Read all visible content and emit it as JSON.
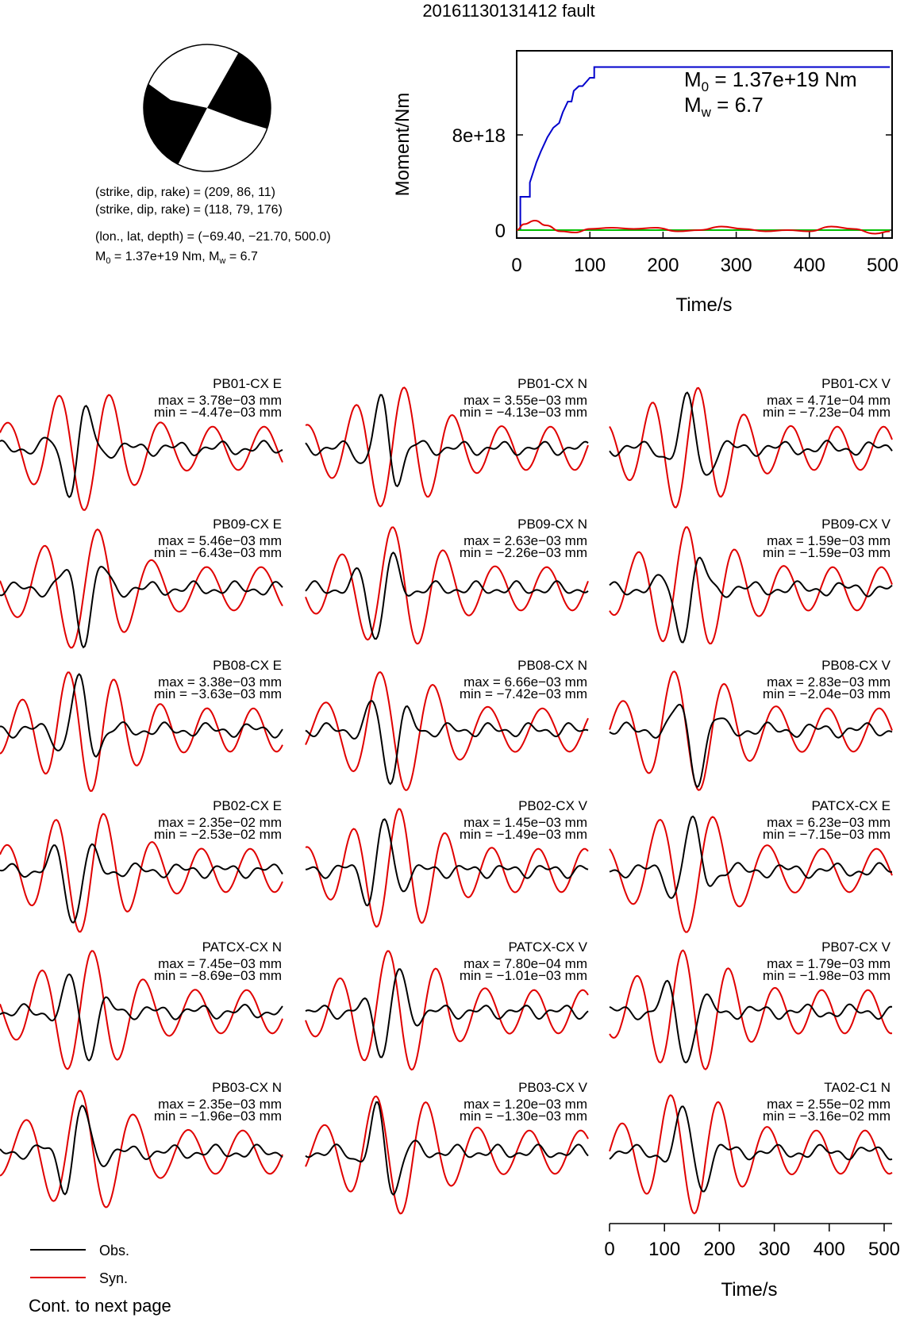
{
  "title": "20161130131412 fault",
  "beachball": {
    "lines": [
      "(strike, dip, rake) = (209, 86, 11)",
      "(strike, dip, rake) = (118, 79, 176)",
      "(lon., lat, depth) = (−69.40, −21.70, 500.0)"
    ],
    "moment_line": {
      "m0_prefix": "M",
      "m0_sub": "0",
      "m0_value": " = 1.37e+19 Nm, M",
      "mw_sub": "w",
      "mw_value": " = 6.7"
    }
  },
  "colors": {
    "obs": "#000000",
    "syn": "#e00000",
    "moment": "#0000cc",
    "stf_green": "#00c000"
  },
  "legend": {
    "obs": "Obs.",
    "syn": "Syn.",
    "cont": "Cont. to next page"
  },
  "chart_data": [
    {
      "type": "line",
      "name": "moment-rate",
      "xlabel": "Time/s",
      "ylabel": "Moment/Nm",
      "xlim": [
        0,
        510
      ],
      "ylim": [
        -1e+17,
        1.45e+19
      ],
      "xticks": [
        "0",
        "100",
        "200",
        "300",
        "400",
        "500"
      ],
      "yticks": [
        "0",
        "8e+18"
      ],
      "annotation": {
        "m0_prefix": "M",
        "m0_sub": "0",
        "m0_value": " = 1.37e+19 Nm",
        "mw_prefix": "M",
        "mw_sub": "w",
        "mw_value": " = 6.7"
      },
      "series": [
        {
          "color": "#0000cc",
          "x": [
            0,
            5,
            5,
            18,
            18,
            27,
            33,
            42,
            50,
            58,
            63,
            70,
            75,
            78,
            85,
            90,
            100,
            106,
            106,
            510
          ],
          "y": [
            0,
            0,
            2.8e+18,
            2.8e+18,
            4e+18,
            5.7e+18,
            6.6e+18,
            7.8e+18,
            8.6e+18,
            9e+18,
            9.9e+18,
            1.08e+19,
            1.08e+19,
            1.17e+19,
            1.21e+19,
            1.21e+19,
            1.28e+19,
            1.28e+19,
            1.37e+19,
            1.37e+19
          ]
        },
        {
          "color": "#00c000",
          "x": [
            0,
            510
          ],
          "y": [
            0,
            0
          ]
        },
        {
          "color": "#e00000",
          "x": [
            0,
            10,
            25,
            40,
            60,
            80,
            100,
            130,
            160,
            190,
            220,
            250,
            280,
            310,
            340,
            370,
            400,
            430,
            460,
            490,
            510
          ],
          "y": [
            0,
            5e+17,
            8e+17,
            4e+17,
            -1e+17,
            -2e+17,
            1e+17,
            2e+17,
            1e+17,
            2e+17,
            -1e+17,
            0,
            3e+17,
            1e+17,
            -1e+17,
            0,
            -1e+17,
            3e+17,
            1e+17,
            -3e+17,
            -1e+17
          ]
        }
      ]
    },
    {
      "type": "line",
      "name": "waveforms",
      "xlabel": "Time/s",
      "xlim": [
        0,
        510
      ],
      "xticks": [
        "0",
        "100",
        "200",
        "300",
        "400",
        "500"
      ],
      "legend": [
        "Obs.",
        "Syn."
      ],
      "traces": [
        {
          "station": "PB01-CX E",
          "max": "max = 3.78e−03 mm",
          "min": "min = −4.47e−03 mm"
        },
        {
          "station": "PB01-CX N",
          "max": "max = 3.55e−03 mm",
          "min": "min = −4.13e−03 mm"
        },
        {
          "station": "PB01-CX V",
          "max": "max = 4.71e−04 mm",
          "min": "min = −7.23e−04 mm"
        },
        {
          "station": "PB09-CX E",
          "max": "max = 5.46e−03 mm",
          "min": "min = −6.43e−03 mm"
        },
        {
          "station": "PB09-CX N",
          "max": "max = 2.63e−03 mm",
          "min": "min = −2.26e−03 mm"
        },
        {
          "station": "PB09-CX V",
          "max": "max = 1.59e−03 mm",
          "min": "min = −1.59e−03 mm"
        },
        {
          "station": "PB08-CX E",
          "max": "max = 3.38e−03 mm",
          "min": "min = −3.63e−03 mm"
        },
        {
          "station": "PB08-CX N",
          "max": "max = 6.66e−03 mm",
          "min": "min = −7.42e−03 mm"
        },
        {
          "station": "PB08-CX V",
          "max": "max = 2.83e−03 mm",
          "min": "min = −2.04e−03 mm"
        },
        {
          "station": "PB02-CX E",
          "max": "max = 2.35e−02 mm",
          "min": "min = −2.53e−02 mm"
        },
        {
          "station": "PB02-CX V",
          "max": "max = 1.45e−03 mm",
          "min": "min = −1.49e−03 mm"
        },
        {
          "station": "PATCX-CX E",
          "max": "max = 6.23e−03 mm",
          "min": "min = −7.15e−03 mm"
        },
        {
          "station": "PATCX-CX N",
          "max": "max = 7.45e−03 mm",
          "min": "min = −8.69e−03 mm"
        },
        {
          "station": "PATCX-CX V",
          "max": "max = 7.80e−04 mm",
          "min": "min = −1.01e−03 mm"
        },
        {
          "station": "PB07-CX V",
          "max": "max = 1.79e−03 mm",
          "min": "min = −1.98e−03 mm"
        },
        {
          "station": "PB03-CX N",
          "max": "max = 2.35e−03 mm",
          "min": "min = −1.96e−03 mm"
        },
        {
          "station": "PB03-CX V",
          "max": "max = 1.20e−03 mm",
          "min": "min = −1.30e−03 mm"
        },
        {
          "station": "TA02-C1 N",
          "max": "max = 2.55e−02 mm",
          "min": "min = −3.16e−02 mm"
        }
      ]
    }
  ]
}
